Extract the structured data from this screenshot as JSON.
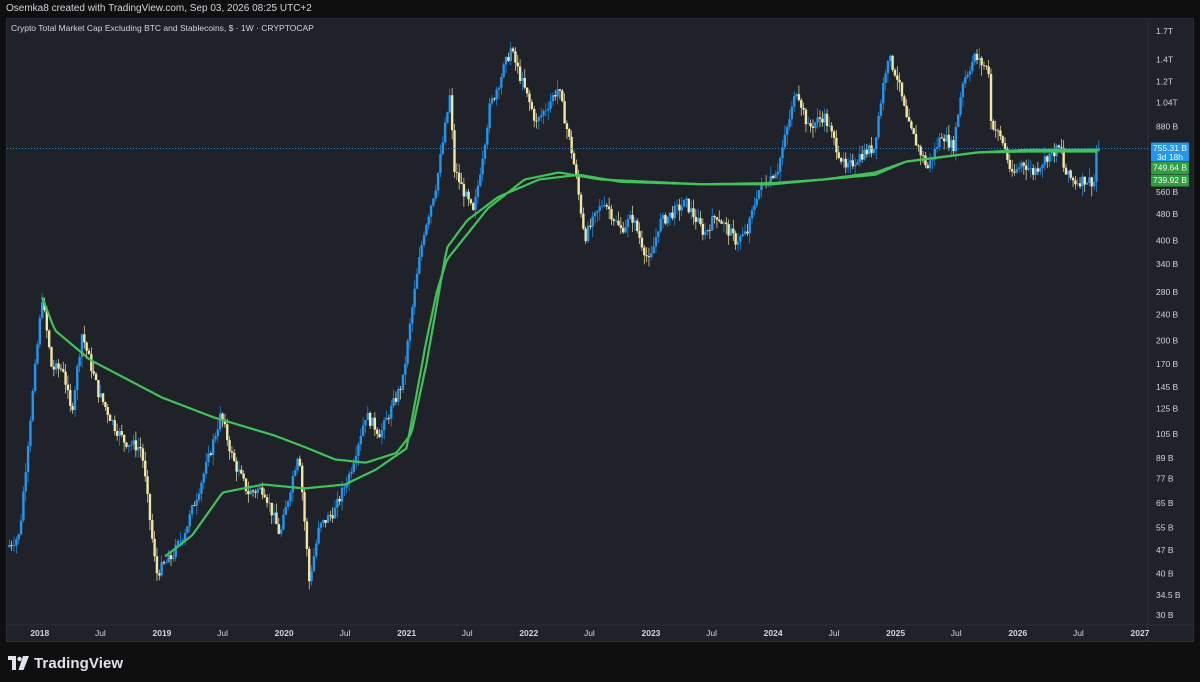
{
  "header": {
    "credit": "Osemka8 created with TradingView.com, Sep 03, 2026 08:25 UTC+2"
  },
  "brand": {
    "name": "TradingView"
  },
  "colors": {
    "background": "#1f2228",
    "up_candle": "#2196f3",
    "down_candle": "#f3e5a5",
    "ma_line": "#43c15c",
    "price_label": "#2196f3",
    "ma_label": "#2e9e3f"
  },
  "chart_data": {
    "type": "candlestick",
    "title": "Crypto Total Market Cap Excluding BTC and Stablecoins, $ · 1W · CRYPTOCAP",
    "y_scale": "log",
    "ylim": [
      28,
      1850
    ],
    "xlim": [
      "2017-09-25",
      "2027-01-25"
    ],
    "x_tick_labels": [
      {
        "label": "2018",
        "date": "2018-01-01"
      },
      {
        "label": "Jul",
        "date": "2018-07-01"
      },
      {
        "label": "2019",
        "date": "2019-01-01"
      },
      {
        "label": "Jul",
        "date": "2019-07-01"
      },
      {
        "label": "2020",
        "date": "2020-01-01"
      },
      {
        "label": "Jul",
        "date": "2020-07-01"
      },
      {
        "label": "2021",
        "date": "2021-01-01"
      },
      {
        "label": "Jul",
        "date": "2021-07-01"
      },
      {
        "label": "2022",
        "date": "2022-01-01"
      },
      {
        "label": "Jul",
        "date": "2022-07-01"
      },
      {
        "label": "2023",
        "date": "2023-01-01"
      },
      {
        "label": "Jul",
        "date": "2023-07-01"
      },
      {
        "label": "2024",
        "date": "2024-01-01"
      },
      {
        "label": "Jul",
        "date": "2024-07-01"
      },
      {
        "label": "2025",
        "date": "2025-01-01"
      },
      {
        "label": "Jul",
        "date": "2025-07-01"
      },
      {
        "label": "2026",
        "date": "2026-01-01"
      },
      {
        "label": "Jul",
        "date": "2026-07-01"
      },
      {
        "label": "2027",
        "date": "2027-01-01"
      }
    ],
    "y_tick_labels": [
      {
        "label": "1.7T",
        "value": 1700
      },
      {
        "label": "1.4T",
        "value": 1400
      },
      {
        "label": "1.2T",
        "value": 1200
      },
      {
        "label": "1.04T",
        "value": 1040
      },
      {
        "label": "880 B",
        "value": 880
      },
      {
        "label": "560 B",
        "value": 560
      },
      {
        "label": "480 B",
        "value": 480
      },
      {
        "label": "400 B",
        "value": 400
      },
      {
        "label": "340 B",
        "value": 340
      },
      {
        "label": "280 B",
        "value": 280
      },
      {
        "label": "240 B",
        "value": 240
      },
      {
        "label": "200 B",
        "value": 200
      },
      {
        "label": "170 B",
        "value": 170
      },
      {
        "label": "145 B",
        "value": 145
      },
      {
        "label": "125 B",
        "value": 125
      },
      {
        "label": "105 B",
        "value": 105
      },
      {
        "label": "89 B",
        "value": 89
      },
      {
        "label": "77 B",
        "value": 77
      },
      {
        "label": "65 B",
        "value": 65
      },
      {
        "label": "55 B",
        "value": 55
      },
      {
        "label": "47 B",
        "value": 47
      },
      {
        "label": "40 B",
        "value": 40
      },
      {
        "label": "34.5 B",
        "value": 34.5
      },
      {
        "label": "30 B",
        "value": 30
      }
    ],
    "price_anchors": [
      [
        "2017-09-25",
        48
      ],
      [
        "2017-11-01",
        52
      ],
      [
        "2017-12-01",
        110
      ],
      [
        "2018-01-08",
        270
      ],
      [
        "2018-02-06",
        165
      ],
      [
        "2018-03-12",
        165
      ],
      [
        "2018-04-05",
        120
      ],
      [
        "2018-05-07",
        210
      ],
      [
        "2018-06-25",
        140
      ],
      [
        "2018-08-14",
        110
      ],
      [
        "2018-09-10",
        100
      ],
      [
        "2018-11-01",
        95
      ],
      [
        "2018-12-15",
        40
      ],
      [
        "2019-02-01",
        45
      ],
      [
        "2019-03-15",
        55
      ],
      [
        "2019-05-15",
        85
      ],
      [
        "2019-06-26",
        120
      ],
      [
        "2019-08-01",
        88
      ],
      [
        "2019-09-15",
        70
      ],
      [
        "2019-11-01",
        72
      ],
      [
        "2019-12-20",
        52
      ],
      [
        "2020-02-14",
        95
      ],
      [
        "2020-03-16",
        38
      ],
      [
        "2020-04-15",
        55
      ],
      [
        "2020-06-01",
        62
      ],
      [
        "2020-07-15",
        80
      ],
      [
        "2020-09-01",
        120
      ],
      [
        "2020-10-15",
        105
      ],
      [
        "2020-12-20",
        150
      ],
      [
        "2021-01-20",
        260
      ],
      [
        "2021-02-20",
        420
      ],
      [
        "2021-04-01",
        600
      ],
      [
        "2021-05-10",
        1080
      ],
      [
        "2021-05-24",
        650
      ],
      [
        "2021-07-20",
        480
      ],
      [
        "2021-09-06",
        1000
      ],
      [
        "2021-11-08",
        1500
      ],
      [
        "2022-01-24",
        900
      ],
      [
        "2022-03-30",
        1150
      ],
      [
        "2022-05-12",
        720
      ],
      [
        "2022-06-18",
        410
      ],
      [
        "2022-08-14",
        530
      ],
      [
        "2022-10-01",
        430
      ],
      [
        "2022-11-06",
        470
      ],
      [
        "2022-12-28",
        340
      ],
      [
        "2023-01-25",
        450
      ],
      [
        "2023-04-15",
        520
      ],
      [
        "2023-06-10",
        420
      ],
      [
        "2023-07-15",
        480
      ],
      [
        "2023-09-11",
        400
      ],
      [
        "2023-10-15",
        420
      ],
      [
        "2023-11-15",
        560
      ],
      [
        "2024-01-15",
        660
      ],
      [
        "2024-03-12",
        1150
      ],
      [
        "2024-04-15",
        870
      ],
      [
        "2024-06-01",
        950
      ],
      [
        "2024-08-05",
        650
      ],
      [
        "2024-09-15",
        720
      ],
      [
        "2024-10-28",
        760
      ],
      [
        "2024-12-08",
        1440
      ],
      [
        "2025-01-05",
        1250
      ],
      [
        "2025-02-05",
        900
      ],
      [
        "2025-04-07",
        660
      ],
      [
        "2025-05-20",
        840
      ],
      [
        "2025-06-22",
        760
      ],
      [
        "2025-07-20",
        1200
      ],
      [
        "2025-08-25",
        1420
      ],
      [
        "2025-10-06",
        1300
      ],
      [
        "2025-10-11",
        920
      ],
      [
        "2025-11-20",
        780
      ],
      [
        "2025-12-15",
        620
      ],
      [
        "2026-01-15",
        690
      ],
      [
        "2026-02-15",
        640
      ],
      [
        "2026-04-01",
        720
      ],
      [
        "2026-05-10",
        760
      ],
      [
        "2026-05-20",
        640
      ],
      [
        "2026-06-20",
        600
      ],
      [
        "2026-07-20",
        610
      ],
      [
        "2026-08-20",
        600
      ],
      [
        "2026-08-24",
        745
      ],
      [
        "2026-08-31",
        755.31
      ]
    ],
    "series": [
      {
        "ma_anchors": [
          [
            "2018-01-08",
            270
          ],
          [
            "2018-02-15",
            215
          ],
          [
            "2018-06-01",
            175
          ],
          [
            "2019-01-01",
            135
          ],
          [
            "2019-06-01",
            118
          ],
          [
            "2019-12-01",
            104
          ],
          [
            "2020-03-01",
            96
          ],
          [
            "2020-06-01",
            88
          ],
          [
            "2020-09-01",
            86
          ],
          [
            "2020-12-01",
            92
          ],
          [
            "2021-01-15",
            105
          ],
          [
            "2021-03-01",
            170
          ],
          [
            "2021-05-01",
            380
          ],
          [
            "2021-07-01",
            460
          ],
          [
            "2021-10-01",
            540
          ],
          [
            "2022-02-01",
            610
          ],
          [
            "2022-06-01",
            630
          ],
          [
            "2022-10-01",
            600
          ],
          [
            "2023-06-01",
            590
          ],
          [
            "2024-01-01",
            590
          ],
          [
            "2024-06-01",
            610
          ],
          [
            "2024-11-01",
            640
          ],
          [
            "2025-02-01",
            690
          ],
          [
            "2025-09-01",
            735
          ],
          [
            "2026-02-01",
            749
          ],
          [
            "2026-09-01",
            749.64
          ]
        ]
      },
      {
        "ma_anchors": [
          [
            "2019-01-10",
            45
          ],
          [
            "2019-04-01",
            52
          ],
          [
            "2019-07-01",
            70
          ],
          [
            "2019-11-01",
            74
          ],
          [
            "2020-03-01",
            72
          ],
          [
            "2020-07-01",
            74
          ],
          [
            "2020-10-01",
            82
          ],
          [
            "2021-01-01",
            95
          ],
          [
            "2021-03-01",
            200
          ],
          [
            "2021-04-01",
            280
          ],
          [
            "2021-05-01",
            350
          ],
          [
            "2021-09-01",
            500
          ],
          [
            "2021-12-20",
            610
          ],
          [
            "2022-04-01",
            640
          ],
          [
            "2022-08-01",
            610
          ],
          [
            "2023-06-01",
            590
          ],
          [
            "2024-01-01",
            595
          ],
          [
            "2024-06-01",
            610
          ],
          [
            "2024-11-01",
            630
          ],
          [
            "2025-02-01",
            690
          ],
          [
            "2025-09-01",
            735
          ],
          [
            "2026-02-01",
            740
          ],
          [
            "2026-09-01",
            739.92
          ]
        ]
      }
    ],
    "last_price": {
      "value": 755.31,
      "label": "755.31 B",
      "countdown": "3d 18h"
    },
    "ma_values": [
      {
        "value": 749.64,
        "label": "749.64 B"
      },
      {
        "value": 739.92,
        "label": "739.92 B"
      }
    ]
  }
}
